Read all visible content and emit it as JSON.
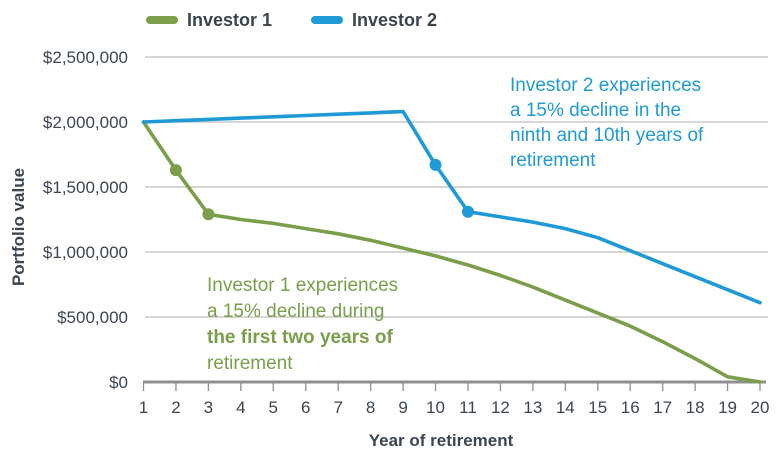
{
  "chart_data": {
    "type": "line",
    "title": "",
    "xlabel": "Year of retirement",
    "ylabel": "Portfolio value",
    "x": [
      1,
      2,
      3,
      4,
      5,
      6,
      7,
      8,
      9,
      10,
      11,
      12,
      13,
      14,
      15,
      16,
      17,
      18,
      19,
      20
    ],
    "series": [
      {
        "name": "Investor 1",
        "color": "#7a9e4a",
        "values": [
          2000000,
          1630000,
          1290000,
          1250000,
          1220000,
          1180000,
          1140000,
          1090000,
          1030000,
          970000,
          900000,
          820000,
          730000,
          630000,
          530000,
          430000,
          310000,
          180000,
          40000,
          0
        ],
        "marker_years": [
          2,
          3
        ]
      },
      {
        "name": "Investor 2",
        "color": "#1f9ad6",
        "values": [
          2000000,
          2010000,
          2020000,
          2030000,
          2040000,
          2050000,
          2060000,
          2070000,
          2080000,
          1670000,
          1310000,
          1270000,
          1230000,
          1180000,
          1110000,
          1010000,
          910000,
          810000,
          710000,
          610000
        ],
        "marker_years": [
          10,
          11
        ]
      }
    ],
    "y_ticks": [
      {
        "value": 0,
        "label": "$0"
      },
      {
        "value": 500000,
        "label": "$500,000"
      },
      {
        "value": 1000000,
        "label": "$1,000,000"
      },
      {
        "value": 1500000,
        "label": "$1,500,000"
      },
      {
        "value": 2000000,
        "label": "$2,000,000"
      },
      {
        "value": 2500000,
        "label": "$2,500,000"
      }
    ],
    "ylim": [
      0,
      2500000
    ],
    "grid": "horizontal",
    "legend_position": "top"
  },
  "annotations": {
    "investor1": {
      "color": "#7a9e4a",
      "lines": [
        "Investor 1 experiences",
        "a 15% decline during",
        "the first two years of",
        "retirement"
      ]
    },
    "investor2": {
      "color": "#1f9ad6",
      "lines": [
        "Investor 2 experiences",
        "a 15% decline in the",
        "ninth and 10th years of",
        "retirement"
      ]
    }
  },
  "colors": {
    "investor1_green": "#7a9e4a",
    "investor2_blue": "#1f9ad6",
    "axis_text": "#3c4650",
    "gridline": "#bdbdbd",
    "axis_line": "#8f8f8f"
  }
}
